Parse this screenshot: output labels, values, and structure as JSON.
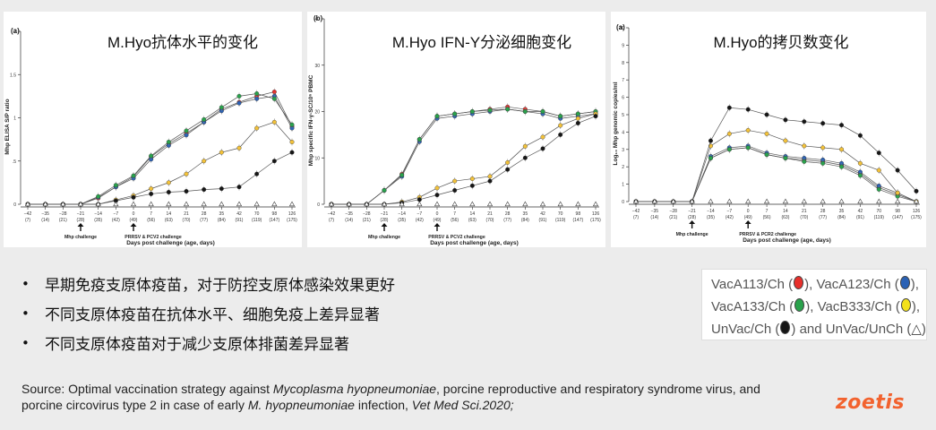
{
  "chart_data": [
    {
      "type": "line",
      "panel_letter": "(a)",
      "title": "M.Hyo抗体水平的变化",
      "ylabel": "Mhp ELISA S/P ratio",
      "xlabel": "Days post challenge (age, days)",
      "ylim": [
        0,
        2
      ],
      "yticks": [
        "0",
        ".5",
        "1",
        "1.5",
        "2"
      ],
      "x": [
        -42,
        -35,
        -28,
        -21,
        -14,
        -7,
        0,
        7,
        14,
        21,
        28,
        35,
        42,
        70,
        98,
        126
      ],
      "x_tick_labels": [
        "−42",
        "−35",
        "−28",
        "−21",
        "−14",
        "−7",
        "0",
        "7",
        "14",
        "21",
        "28",
        "35",
        "42",
        "70",
        "98",
        "126"
      ],
      "age_labels": [
        "(7)",
        "(14)",
        "(21)",
        "(28)",
        "(35)",
        "(42)",
        "(49)",
        "(56)",
        "(63)",
        "(70)",
        "(77)",
        "(84)",
        "(91)",
        "(119)",
        "(147)",
        "(175)"
      ],
      "annotations": [
        "Mhp challenge",
        "PRRSV & PCV2 challenge"
      ],
      "series": [
        {
          "color": "#e8302c",
          "values": [
            0,
            0,
            0,
            0,
            0.07,
            0.2,
            0.32,
            0.55,
            0.7,
            0.82,
            0.95,
            1.1,
            1.18,
            1.25,
            1.3,
            0.9
          ]
        },
        {
          "color": "#2b62b5",
          "values": [
            0,
            0,
            0,
            0,
            0.08,
            0.2,
            0.3,
            0.52,
            0.68,
            0.8,
            0.95,
            1.08,
            1.17,
            1.22,
            1.25,
            0.88
          ]
        },
        {
          "color": "#2aa24c",
          "values": [
            0,
            0,
            0,
            0,
            0.09,
            0.22,
            0.33,
            0.56,
            0.72,
            0.85,
            0.98,
            1.12,
            1.25,
            1.28,
            1.22,
            0.92
          ]
        },
        {
          "color": "#f3c23a",
          "values": [
            0,
            0,
            0,
            0,
            0,
            0.05,
            0.1,
            0.18,
            0.25,
            0.35,
            0.5,
            0.6,
            0.65,
            0.88,
            0.95,
            0.72
          ]
        },
        {
          "color": "#161616",
          "values": [
            0,
            0,
            0,
            0,
            0,
            0.04,
            0.08,
            0.12,
            0.14,
            0.15,
            0.17,
            0.18,
            0.2,
            0.35,
            0.5,
            0.6
          ]
        },
        {
          "color": "#ffffff",
          "values": [
            0,
            0,
            0,
            0,
            0,
            0,
            0,
            0,
            0,
            0,
            0,
            0,
            0,
            0,
            0,
            0
          ]
        }
      ]
    },
    {
      "type": "line",
      "panel_letter": "(b)",
      "title": "M.Hyo IFN-Y分泌细胞变化",
      "ylabel": "Mhp specific IFN-γ-SC/10⁶ PBMC",
      "xlabel": "Days post challenge (age, days)",
      "ylim": [
        0,
        40
      ],
      "yticks": [
        "0",
        "10",
        "20",
        "30",
        "40"
      ],
      "x": [
        -42,
        -35,
        -28,
        -21,
        -14,
        -7,
        0,
        7,
        14,
        21,
        28,
        35,
        42,
        70,
        98,
        126
      ],
      "x_tick_labels": [
        "−42",
        "−35",
        "−28",
        "−21",
        "−14",
        "−7",
        "0",
        "7",
        "14",
        "21",
        "28",
        "35",
        "42",
        "70",
        "98",
        "126"
      ],
      "age_labels": [
        "(7)",
        "(14)",
        "(21)",
        "(28)",
        "(35)",
        "(42)",
        "(49)",
        "(56)",
        "(63)",
        "(70)",
        "(77)",
        "(84)",
        "(91)",
        "(119)",
        "(147)",
        "(175)"
      ],
      "annotations": [
        "Mhp challenge",
        "PRRSV & PCV2 challenge"
      ],
      "series": [
        {
          "color": "#e8302c",
          "values": [
            0,
            0,
            0,
            3,
            6.5,
            14,
            19,
            19.5,
            20,
            20.5,
            21,
            20.5,
            20,
            19,
            19.5,
            20
          ]
        },
        {
          "color": "#2b62b5",
          "values": [
            0,
            0,
            0,
            3,
            6,
            13.5,
            18.5,
            19,
            19.5,
            20,
            20.5,
            20,
            19.5,
            18.5,
            19,
            19.5
          ]
        },
        {
          "color": "#2aa24c",
          "values": [
            0,
            0,
            0,
            3,
            6.3,
            14,
            19,
            19.5,
            20,
            20.3,
            20.5,
            20,
            20,
            19,
            19.5,
            20
          ]
        },
        {
          "color": "#f3c23a",
          "values": [
            0,
            0,
            0,
            0,
            0.5,
            1.5,
            3.5,
            5,
            5.5,
            6,
            9,
            12.5,
            14.5,
            17,
            18.5,
            19.5
          ]
        },
        {
          "color": "#161616",
          "values": [
            0,
            0,
            0,
            0,
            0.3,
            1,
            2,
            3,
            4,
            5,
            7.5,
            10,
            12,
            15,
            17.5,
            19
          ]
        },
        {
          "color": "#ffffff",
          "values": [
            0,
            0,
            0,
            0,
            0,
            0,
            0,
            0,
            0,
            0,
            0,
            0,
            0,
            0,
            0,
            0
          ]
        }
      ]
    },
    {
      "type": "line",
      "panel_letter": "(a)",
      "title": "M.Hyo的拷贝数变化",
      "ylabel": "Log₁₀ Mhp genomic copies/ml",
      "xlabel": "Days post challenge (age, days)",
      "ylim": [
        0,
        10
      ],
      "yticks": [
        "0",
        "1",
        "2",
        "3",
        "4",
        "5",
        "6",
        "7",
        "8",
        "9",
        "10"
      ],
      "x": [
        -42,
        -35,
        -28,
        -21,
        -14,
        -7,
        0,
        7,
        14,
        21,
        28,
        35,
        42,
        70,
        98,
        126
      ],
      "x_tick_labels": [
        "−42",
        "−35",
        "−28",
        "−21",
        "−14",
        "−7",
        "0",
        "7",
        "14",
        "21",
        "28",
        "35",
        "42",
        "70",
        "98",
        "126"
      ],
      "age_labels": [
        "(7)",
        "(14)",
        "(21)",
        "(28)",
        "(35)",
        "(42)",
        "(49)",
        "(56)",
        "(63)",
        "(70)",
        "(77)",
        "(84)",
        "(91)",
        "(119)",
        "(147)",
        "(175)"
      ],
      "annotations": [
        "Mhp challenge",
        "PRRSV & PCR2 challenge"
      ],
      "series": [
        {
          "color": "#e8302c",
          "values": [
            0,
            0,
            0,
            0,
            2.5,
            3,
            3.1,
            2.7,
            2.5,
            2.4,
            2.3,
            2.1,
            1.6,
            0.8,
            0.4,
            0
          ]
        },
        {
          "color": "#2b62b5",
          "values": [
            0,
            0,
            0,
            0,
            2.6,
            3.1,
            3.2,
            2.8,
            2.6,
            2.5,
            2.4,
            2.2,
            1.7,
            0.9,
            0.5,
            0
          ]
        },
        {
          "color": "#2aa24c",
          "values": [
            0,
            0,
            0,
            0,
            2.5,
            3,
            3.1,
            2.7,
            2.5,
            2.3,
            2.2,
            2,
            1.5,
            0.7,
            0.3,
            0
          ]
        },
        {
          "color": "#f3c23a",
          "values": [
            0,
            0,
            0,
            0,
            3.2,
            3.9,
            4.1,
            3.9,
            3.5,
            3.2,
            3.1,
            3,
            2.2,
            1.8,
            0.5,
            0
          ]
        },
        {
          "color": "#161616",
          "values": [
            0,
            0,
            0,
            0,
            3.5,
            5.4,
            5.3,
            5,
            4.7,
            4.6,
            4.5,
            4.4,
            3.8,
            2.8,
            1.8,
            0.6
          ]
        },
        {
          "color": "#ffffff",
          "values": [
            0,
            0,
            0,
            0,
            0,
            0,
            0,
            0,
            0,
            0,
            0,
            0,
            0,
            0,
            0,
            0
          ]
        }
      ]
    }
  ],
  "bullets": [
    "早期免疫支原体疫苗，对于防控支原体感染效果更好",
    "不同支原体疫苗在抗体水平、细胞免疫上差异显著",
    "不同支原体疫苗对于减少支原体排菌差异显著"
  ],
  "legend": {
    "row1_a": "VacA113/Ch (",
    "row1_b": "), VacA123/Ch (",
    "row1_c": "),",
    "row2_a": "VacA133/Ch (",
    "row2_b": "), VacB333/Ch (",
    "row2_c": "),",
    "row3_a": "UnVac/Ch (",
    "row3_b": ") and UnVac/UnCh (",
    "row3_tri": "△",
    "row3_c": ")",
    "colors": {
      "red": "#e8302c",
      "blue": "#2b62b5",
      "green": "#2aa24c",
      "yellow": "#f3e11a",
      "black": "#161616"
    }
  },
  "source": {
    "prefix": "Source: Optimal vaccination strategy against ",
    "italic1": "Mycoplasma hyopneumoniae",
    "middle": ", porcine reproductive and respiratory syndrome virus, and porcine circovirus type 2 in case of early ",
    "italic2": "M. hyopneumoniae",
    "after": " infection, ",
    "journal": "Vet Med Sci.2020;"
  },
  "logo": "zoetis"
}
